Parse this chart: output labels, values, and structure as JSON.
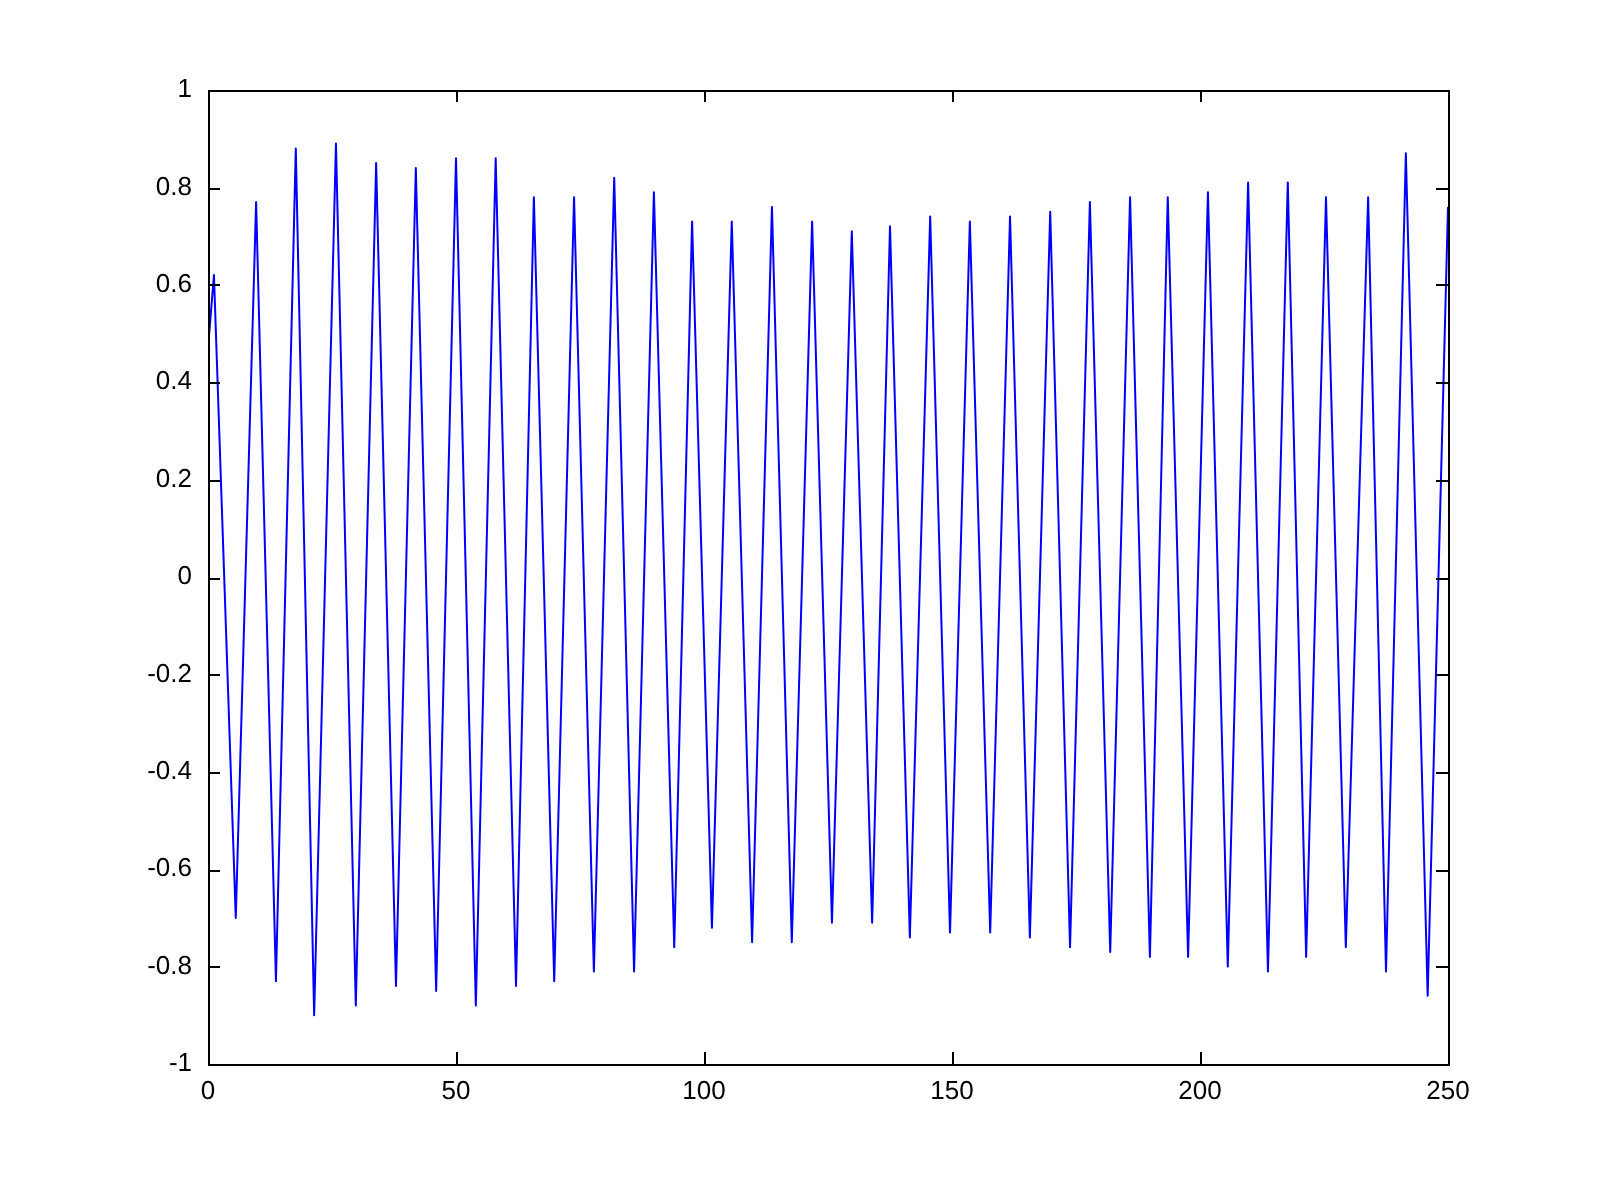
{
  "chart_data": {
    "type": "line",
    "x": [
      0,
      1.2,
      5.6,
      9.7,
      13.7,
      17.7,
      21.4,
      25.8,
      29.8,
      33.9,
      37.9,
      41.9,
      46,
      50,
      54,
      58,
      62.1,
      65.7,
      69.8,
      73.8,
      77.8,
      81.9,
      85.9,
      89.9,
      94,
      97.6,
      101.6,
      105.6,
      109.7,
      113.7,
      117.7,
      121.8,
      125.8,
      129.8,
      133.9,
      137.5,
      141.5,
      145.6,
      149.6,
      153.6,
      157.7,
      161.7,
      165.7,
      169.8,
      173.8,
      177.8,
      181.9,
      185.9,
      189.9,
      193.5,
      197.6,
      201.6,
      205.6,
      209.7,
      213.7,
      217.7,
      221.4,
      225.4,
      229.4,
      233.9,
      237.5,
      241.5,
      245.9,
      250
    ],
    "series": [
      {
        "color": "#0000ff",
        "values": [
          0.47,
          0.62,
          -0.7,
          0.77,
          -0.83,
          0.88,
          -0.9,
          0.89,
          -0.88,
          0.85,
          -0.84,
          0.84,
          -0.85,
          0.86,
          -0.88,
          0.86,
          -0.84,
          0.78,
          -0.83,
          0.78,
          -0.81,
          0.82,
          -0.81,
          0.79,
          -0.76,
          0.73,
          -0.72,
          0.73,
          -0.75,
          0.76,
          -0.75,
          0.73,
          -0.71,
          0.71,
          -0.71,
          0.72,
          -0.74,
          0.74,
          -0.73,
          0.73,
          -0.73,
          0.74,
          -0.74,
          0.75,
          -0.76,
          0.77,
          -0.77,
          0.78,
          -0.78,
          0.78,
          -0.78,
          0.79,
          -0.8,
          0.81,
          -0.81,
          0.81,
          -0.78,
          0.78,
          -0.76,
          0.78,
          -0.81,
          0.87,
          -0.86,
          0.76
        ]
      }
    ],
    "xlim": [
      0,
      250
    ],
    "xticks": [
      0,
      50,
      100,
      150,
      200,
      250
    ],
    "ylim": [
      -1,
      1
    ],
    "yticks": [
      -1,
      -0.8,
      -0.6,
      -0.4,
      -0.2,
      0,
      0.2,
      0.4,
      0.6,
      0.8,
      1
    ],
    "grid": false,
    "legend": false,
    "marker": "none",
    "line_style": "solid"
  }
}
